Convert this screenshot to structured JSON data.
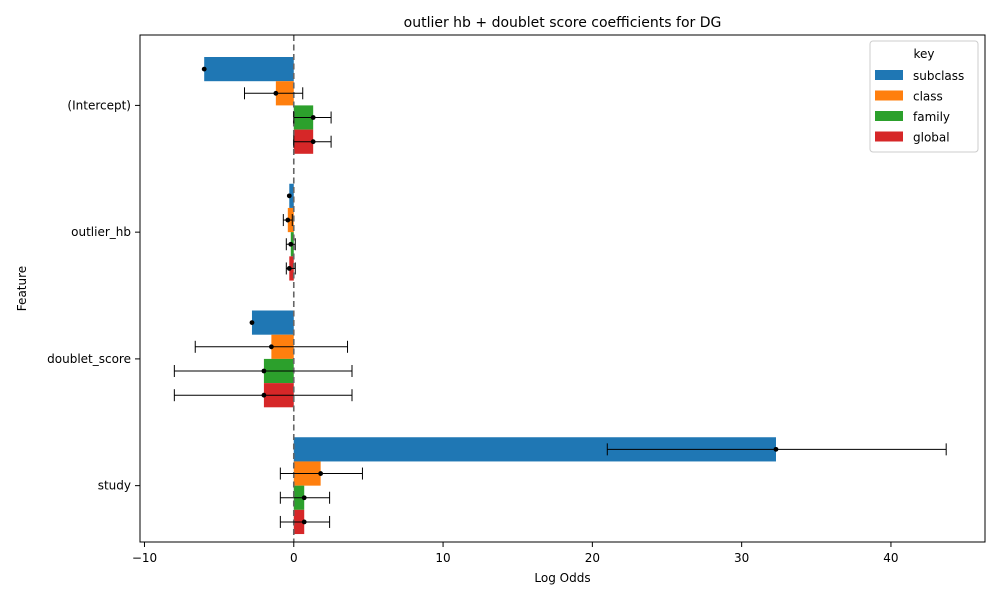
{
  "chart_data": {
    "type": "bar",
    "orientation": "horizontal",
    "title": "outlier hb + doublet score coefficients for DG",
    "xlabel": "Log Odds",
    "ylabel": "Feature",
    "categories": [
      "(Intercept)",
      "outlier_hb",
      "doublet_score",
      "study"
    ],
    "xlim": [
      -10.3,
      46.3
    ],
    "xticks": [
      -10,
      0,
      10,
      20,
      30,
      40
    ],
    "reference_line_x": 0,
    "legend": {
      "title": "key",
      "position": "top-right"
    },
    "series": [
      {
        "name": "subclass",
        "color": "#1f77b4",
        "values": [
          -6.0,
          -0.3,
          -2.8,
          32.3
        ],
        "ci_low": [
          null,
          null,
          null,
          21.0
        ],
        "ci_high": [
          null,
          null,
          null,
          43.7
        ]
      },
      {
        "name": "class",
        "color": "#ff7f0e",
        "values": [
          -1.2,
          -0.4,
          -1.5,
          1.8
        ],
        "ci_low": [
          -3.3,
          -0.7,
          -6.6,
          -0.9
        ],
        "ci_high": [
          0.6,
          -0.1,
          3.6,
          4.6
        ]
      },
      {
        "name": "family",
        "color": "#2ca02c",
        "values": [
          1.3,
          -0.2,
          -2.0,
          0.7
        ],
        "ci_low": [
          0.0,
          -0.5,
          -8.0,
          -0.9
        ],
        "ci_high": [
          2.5,
          0.1,
          3.9,
          2.4
        ]
      },
      {
        "name": "global",
        "color": "#d62728",
        "values": [
          1.3,
          -0.3,
          -2.0,
          0.7
        ],
        "ci_low": [
          0.0,
          -0.5,
          -8.0,
          -0.9
        ],
        "ci_high": [
          2.5,
          0.1,
          3.9,
          2.4
        ]
      }
    ]
  }
}
